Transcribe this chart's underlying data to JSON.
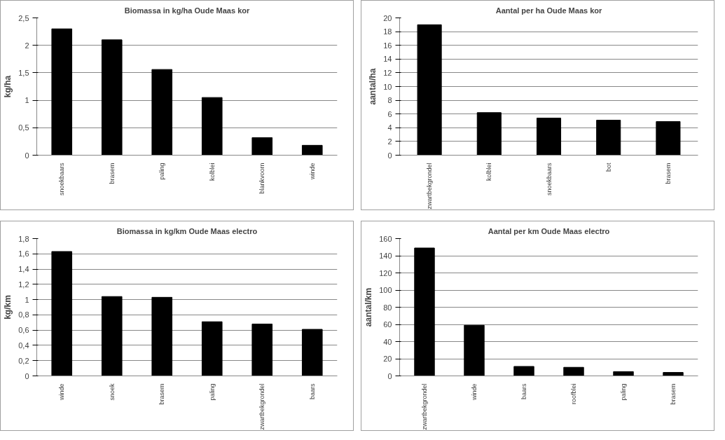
{
  "chart_data": [
    {
      "type": "bar",
      "title": "Biomassa in kg/ha Oude Maas kor",
      "ylabel": "kg/ha",
      "categories": [
        "snoekbaars",
        "brasem",
        "paling",
        "kolblei",
        "blankvoorn",
        "winde"
      ],
      "values": [
        2.3,
        2.1,
        1.56,
        1.05,
        0.32,
        0.18
      ],
      "color": "#000000",
      "ylim": [
        0,
        2.5
      ],
      "yticks": [
        0,
        {
          "value": 0.5,
          "label": "0,5"
        },
        1,
        {
          "value": 1.5,
          "label": "1,5"
        },
        2,
        {
          "value": 2.5,
          "label": "2,5"
        }
      ],
      "grid": "y"
    },
    {
      "type": "bar",
      "title": "Aantal per ha Oude Maas kor",
      "ylabel": "aantal/ha",
      "categories": [
        "zwartbekgrondel",
        "kolblei",
        "snoekbaars",
        "bot",
        "brasem"
      ],
      "values": [
        19,
        6.2,
        5.4,
        5.1,
        4.9
      ],
      "color": "#000000",
      "ylim": [
        0,
        20
      ],
      "yticks": [
        0,
        2,
        4,
        6,
        8,
        10,
        12,
        14,
        16,
        18,
        20
      ],
      "grid": "y"
    },
    {
      "type": "bar",
      "title": "Biomassa in kg/km Oude Maas electro",
      "ylabel": "kg/km",
      "categories": [
        "winde",
        "snoek",
        "brasem",
        "paling",
        "zwartbekgrondel",
        "baars"
      ],
      "values": [
        1.63,
        1.04,
        1.03,
        0.71,
        0.68,
        0.61
      ],
      "color": "#000000",
      "ylim": [
        0,
        1.8
      ],
      "yticks": [
        0,
        {
          "value": 0.2,
          "label": "0,2"
        },
        {
          "value": 0.4,
          "label": "0,4"
        },
        {
          "value": 0.6,
          "label": "0,6"
        },
        {
          "value": 0.8,
          "label": "0,8"
        },
        1,
        {
          "value": 1.2,
          "label": "1,2"
        },
        {
          "value": 1.4,
          "label": "1,4"
        },
        {
          "value": 1.6,
          "label": "1,6"
        },
        {
          "value": 1.8,
          "label": "1,8"
        }
      ],
      "grid": "y"
    },
    {
      "type": "bar",
      "title": "Aantal per km Oude Maas electro",
      "ylabel": "aantal/km",
      "categories": [
        "zwartbekgrondel",
        "winde",
        "baars",
        "roofblei",
        "paling",
        "brasem"
      ],
      "values": [
        149,
        59,
        11,
        10,
        5,
        4
      ],
      "color": "#000000",
      "ylim": [
        0,
        160
      ],
      "yticks": [
        0,
        20,
        40,
        60,
        80,
        100,
        120,
        140,
        160
      ],
      "grid": "y"
    }
  ]
}
